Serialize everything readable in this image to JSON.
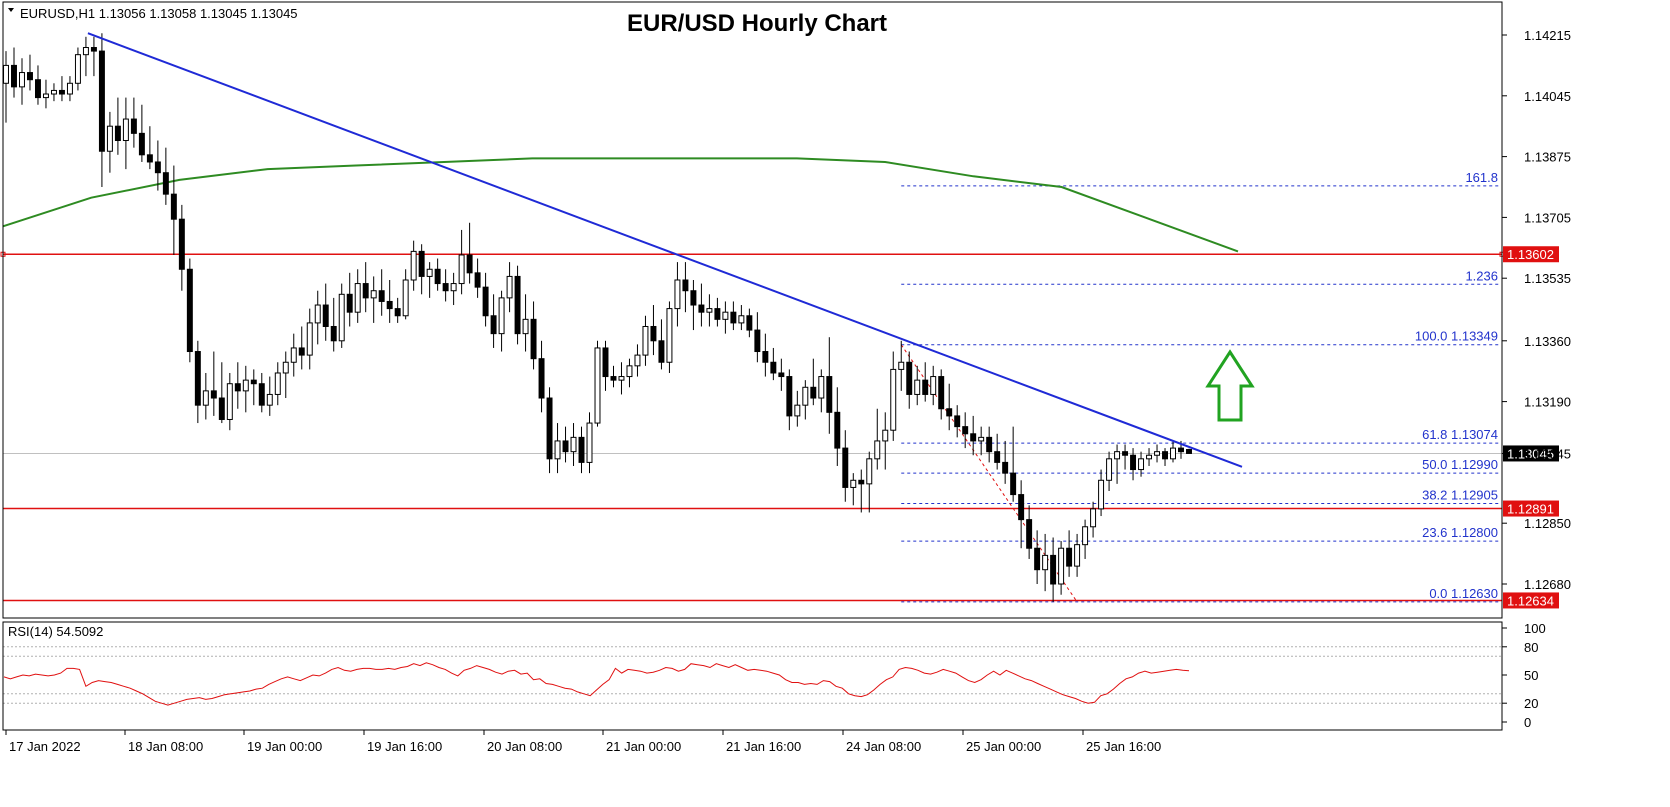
{
  "chart_data": {
    "type": "candlestick",
    "title": "EUR/USD Hourly Chart",
    "symbol_info": "EURUSD,H1  1.13056 1.13058 1.13045 1.13045",
    "price_range": [
      1.1262,
      1.1424
    ],
    "y_ticks": [
      "1.14215",
      "1.14045",
      "1.13875",
      "1.13705",
      "1.13535",
      "1.13360",
      "1.13190",
      "1.13045",
      "1.12850",
      "1.12680"
    ],
    "x_ticks": [
      "17 Jan 2022",
      "18 Jan 08:00",
      "19 Jan 00:00",
      "19 Jan 16:00",
      "20 Jan 08:00",
      "21 Jan 00:00",
      "21 Jan 16:00",
      "24 Jan 08:00",
      "25 Jan 00:00",
      "25 Jan 16:00"
    ],
    "candles": [
      {
        "o": 1.1408,
        "h": 1.1417,
        "l": 1.1397,
        "c": 1.1413
      },
      {
        "o": 1.1413,
        "h": 1.1418,
        "l": 1.1404,
        "c": 1.1407
      },
      {
        "o": 1.1407,
        "h": 1.1415,
        "l": 1.1402,
        "c": 1.1411
      },
      {
        "o": 1.1411,
        "h": 1.1416,
        "l": 1.1406,
        "c": 1.1409
      },
      {
        "o": 1.1409,
        "h": 1.1413,
        "l": 1.1402,
        "c": 1.1404
      },
      {
        "o": 1.1404,
        "h": 1.1409,
        "l": 1.1401,
        "c": 1.1405
      },
      {
        "o": 1.1405,
        "h": 1.1408,
        "l": 1.1403,
        "c": 1.1406
      },
      {
        "o": 1.1406,
        "h": 1.141,
        "l": 1.1403,
        "c": 1.1405
      },
      {
        "o": 1.1405,
        "h": 1.141,
        "l": 1.1403,
        "c": 1.1408
      },
      {
        "o": 1.1408,
        "h": 1.1418,
        "l": 1.1406,
        "c": 1.1416
      },
      {
        "o": 1.1416,
        "h": 1.1421,
        "l": 1.141,
        "c": 1.1418
      },
      {
        "o": 1.1418,
        "h": 1.1421,
        "l": 1.141,
        "c": 1.1417
      },
      {
        "o": 1.1417,
        "h": 1.1422,
        "l": 1.1379,
        "c": 1.1389
      },
      {
        "o": 1.1389,
        "h": 1.14,
        "l": 1.1383,
        "c": 1.1396
      },
      {
        "o": 1.1396,
        "h": 1.1404,
        "l": 1.1388,
        "c": 1.1392
      },
      {
        "o": 1.1392,
        "h": 1.1404,
        "l": 1.1384,
        "c": 1.1398
      },
      {
        "o": 1.1398,
        "h": 1.1404,
        "l": 1.139,
        "c": 1.1394
      },
      {
        "o": 1.1394,
        "h": 1.1402,
        "l": 1.1386,
        "c": 1.1388
      },
      {
        "o": 1.1388,
        "h": 1.1396,
        "l": 1.1384,
        "c": 1.1386
      },
      {
        "o": 1.1386,
        "h": 1.1392,
        "l": 1.1378,
        "c": 1.1383
      },
      {
        "o": 1.1383,
        "h": 1.139,
        "l": 1.1374,
        "c": 1.1377
      },
      {
        "o": 1.1377,
        "h": 1.1385,
        "l": 1.136,
        "c": 1.137
      },
      {
        "o": 1.137,
        "h": 1.1374,
        "l": 1.135,
        "c": 1.1356
      },
      {
        "o": 1.1356,
        "h": 1.1359,
        "l": 1.133,
        "c": 1.1333
      },
      {
        "o": 1.1333,
        "h": 1.1336,
        "l": 1.1313,
        "c": 1.1318
      },
      {
        "o": 1.1318,
        "h": 1.1327,
        "l": 1.1314,
        "c": 1.1322
      },
      {
        "o": 1.1322,
        "h": 1.1333,
        "l": 1.1315,
        "c": 1.132
      },
      {
        "o": 1.132,
        "h": 1.133,
        "l": 1.1313,
        "c": 1.1314
      },
      {
        "o": 1.1314,
        "h": 1.1327,
        "l": 1.1311,
        "c": 1.1324
      },
      {
        "o": 1.1324,
        "h": 1.133,
        "l": 1.1317,
        "c": 1.1322
      },
      {
        "o": 1.1322,
        "h": 1.1329,
        "l": 1.1316,
        "c": 1.1325
      },
      {
        "o": 1.1325,
        "h": 1.1328,
        "l": 1.1318,
        "c": 1.1324
      },
      {
        "o": 1.1324,
        "h": 1.1327,
        "l": 1.1316,
        "c": 1.1318
      },
      {
        "o": 1.1318,
        "h": 1.1326,
        "l": 1.1315,
        "c": 1.1321
      },
      {
        "o": 1.1321,
        "h": 1.133,
        "l": 1.1318,
        "c": 1.1327
      },
      {
        "o": 1.1327,
        "h": 1.1333,
        "l": 1.132,
        "c": 1.133
      },
      {
        "o": 1.133,
        "h": 1.1338,
        "l": 1.1326,
        "c": 1.1334
      },
      {
        "o": 1.1334,
        "h": 1.134,
        "l": 1.1328,
        "c": 1.1332
      },
      {
        "o": 1.1332,
        "h": 1.1345,
        "l": 1.1328,
        "c": 1.1341
      },
      {
        "o": 1.1341,
        "h": 1.135,
        "l": 1.1335,
        "c": 1.1346
      },
      {
        "o": 1.1346,
        "h": 1.1352,
        "l": 1.1336,
        "c": 1.134
      },
      {
        "o": 1.134,
        "h": 1.1348,
        "l": 1.1333,
        "c": 1.1336
      },
      {
        "o": 1.1336,
        "h": 1.1352,
        "l": 1.1334,
        "c": 1.1349
      },
      {
        "o": 1.1349,
        "h": 1.1355,
        "l": 1.134,
        "c": 1.1344
      },
      {
        "o": 1.1344,
        "h": 1.1356,
        "l": 1.1341,
        "c": 1.1352
      },
      {
        "o": 1.1352,
        "h": 1.1358,
        "l": 1.1344,
        "c": 1.1348
      },
      {
        "o": 1.1348,
        "h": 1.1354,
        "l": 1.1341,
        "c": 1.135
      },
      {
        "o": 1.135,
        "h": 1.1356,
        "l": 1.1343,
        "c": 1.1347
      },
      {
        "o": 1.1347,
        "h": 1.1353,
        "l": 1.1341,
        "c": 1.1345
      },
      {
        "o": 1.1345,
        "h": 1.1348,
        "l": 1.1341,
        "c": 1.1343
      },
      {
        "o": 1.1343,
        "h": 1.1356,
        "l": 1.1342,
        "c": 1.1353
      },
      {
        "o": 1.1353,
        "h": 1.1364,
        "l": 1.135,
        "c": 1.1361
      },
      {
        "o": 1.1361,
        "h": 1.1363,
        "l": 1.1349,
        "c": 1.1354
      },
      {
        "o": 1.1354,
        "h": 1.1358,
        "l": 1.1348,
        "c": 1.1356
      },
      {
        "o": 1.1356,
        "h": 1.1359,
        "l": 1.135,
        "c": 1.1352
      },
      {
        "o": 1.1352,
        "h": 1.1356,
        "l": 1.1347,
        "c": 1.135
      },
      {
        "o": 1.135,
        "h": 1.1355,
        "l": 1.1346,
        "c": 1.1352
      },
      {
        "o": 1.1352,
        "h": 1.1367,
        "l": 1.1349,
        "c": 1.136
      },
      {
        "o": 1.136,
        "h": 1.1369,
        "l": 1.1352,
        "c": 1.1355
      },
      {
        "o": 1.1355,
        "h": 1.1359,
        "l": 1.1348,
        "c": 1.1351
      },
      {
        "o": 1.1351,
        "h": 1.1355,
        "l": 1.134,
        "c": 1.1343
      },
      {
        "o": 1.1343,
        "h": 1.1349,
        "l": 1.1334,
        "c": 1.1338
      },
      {
        "o": 1.1338,
        "h": 1.135,
        "l": 1.1333,
        "c": 1.1348
      },
      {
        "o": 1.1348,
        "h": 1.1358,
        "l": 1.1344,
        "c": 1.1354
      },
      {
        "o": 1.1354,
        "h": 1.1357,
        "l": 1.1335,
        "c": 1.1338
      },
      {
        "o": 1.1338,
        "h": 1.1349,
        "l": 1.1333,
        "c": 1.1342
      },
      {
        "o": 1.1342,
        "h": 1.1347,
        "l": 1.1328,
        "c": 1.1331
      },
      {
        "o": 1.1331,
        "h": 1.1336,
        "l": 1.1316,
        "c": 1.132
      },
      {
        "o": 1.132,
        "h": 1.1323,
        "l": 1.1299,
        "c": 1.1303
      },
      {
        "o": 1.1303,
        "h": 1.1313,
        "l": 1.1299,
        "c": 1.1308
      },
      {
        "o": 1.1308,
        "h": 1.1312,
        "l": 1.1302,
        "c": 1.1305
      },
      {
        "o": 1.1305,
        "h": 1.1313,
        "l": 1.1301,
        "c": 1.1309
      },
      {
        "o": 1.1309,
        "h": 1.1312,
        "l": 1.1299,
        "c": 1.1302
      },
      {
        "o": 1.1302,
        "h": 1.1316,
        "l": 1.1299,
        "c": 1.1313
      },
      {
        "o": 1.1313,
        "h": 1.1336,
        "l": 1.1312,
        "c": 1.1334
      },
      {
        "o": 1.1334,
        "h": 1.1336,
        "l": 1.1322,
        "c": 1.1326
      },
      {
        "o": 1.1326,
        "h": 1.1329,
        "l": 1.1323,
        "c": 1.1325
      },
      {
        "o": 1.1325,
        "h": 1.133,
        "l": 1.1321,
        "c": 1.1326
      },
      {
        "o": 1.1326,
        "h": 1.1331,
        "l": 1.1323,
        "c": 1.1329
      },
      {
        "o": 1.1329,
        "h": 1.1335,
        "l": 1.1326,
        "c": 1.1332
      },
      {
        "o": 1.1332,
        "h": 1.1343,
        "l": 1.1329,
        "c": 1.134
      },
      {
        "o": 1.134,
        "h": 1.1346,
        "l": 1.1332,
        "c": 1.1336
      },
      {
        "o": 1.1336,
        "h": 1.1342,
        "l": 1.1328,
        "c": 1.133
      },
      {
        "o": 1.133,
        "h": 1.1347,
        "l": 1.1327,
        "c": 1.1345
      },
      {
        "o": 1.1345,
        "h": 1.1358,
        "l": 1.134,
        "c": 1.1353
      },
      {
        "o": 1.1353,
        "h": 1.1358,
        "l": 1.1344,
        "c": 1.135
      },
      {
        "o": 1.135,
        "h": 1.1353,
        "l": 1.1339,
        "c": 1.1346
      },
      {
        "o": 1.1346,
        "h": 1.1352,
        "l": 1.134,
        "c": 1.1344
      },
      {
        "o": 1.1344,
        "h": 1.1349,
        "l": 1.134,
        "c": 1.1345
      },
      {
        "o": 1.1345,
        "h": 1.1348,
        "l": 1.134,
        "c": 1.1342
      },
      {
        "o": 1.1342,
        "h": 1.1347,
        "l": 1.1338,
        "c": 1.1344
      },
      {
        "o": 1.1344,
        "h": 1.1347,
        "l": 1.1339,
        "c": 1.1341
      },
      {
        "o": 1.1341,
        "h": 1.1346,
        "l": 1.1339,
        "c": 1.1343
      },
      {
        "o": 1.1343,
        "h": 1.1345,
        "l": 1.1337,
        "c": 1.1339
      },
      {
        "o": 1.1339,
        "h": 1.1344,
        "l": 1.133,
        "c": 1.1333
      },
      {
        "o": 1.1333,
        "h": 1.1338,
        "l": 1.1326,
        "c": 1.133
      },
      {
        "o": 1.133,
        "h": 1.1334,
        "l": 1.1325,
        "c": 1.1327
      },
      {
        "o": 1.1327,
        "h": 1.1331,
        "l": 1.1322,
        "c": 1.1326
      },
      {
        "o": 1.1326,
        "h": 1.1328,
        "l": 1.1311,
        "c": 1.1315
      },
      {
        "o": 1.1315,
        "h": 1.1322,
        "l": 1.1312,
        "c": 1.1318
      },
      {
        "o": 1.1318,
        "h": 1.1325,
        "l": 1.1314,
        "c": 1.1323
      },
      {
        "o": 1.1323,
        "h": 1.1331,
        "l": 1.1318,
        "c": 1.132
      },
      {
        "o": 1.132,
        "h": 1.1328,
        "l": 1.1316,
        "c": 1.1326
      },
      {
        "o": 1.1326,
        "h": 1.1337,
        "l": 1.131,
        "c": 1.1316
      },
      {
        "o": 1.1316,
        "h": 1.1323,
        "l": 1.1301,
        "c": 1.1306
      },
      {
        "o": 1.1306,
        "h": 1.1311,
        "l": 1.1291,
        "c": 1.1295
      },
      {
        "o": 1.1295,
        "h": 1.1299,
        "l": 1.129,
        "c": 1.1297
      },
      {
        "o": 1.1297,
        "h": 1.13,
        "l": 1.1288,
        "c": 1.1296
      },
      {
        "o": 1.1296,
        "h": 1.1305,
        "l": 1.1288,
        "c": 1.1303
      },
      {
        "o": 1.1303,
        "h": 1.1317,
        "l": 1.13,
        "c": 1.1308
      },
      {
        "o": 1.1308,
        "h": 1.1316,
        "l": 1.13,
        "c": 1.1311
      },
      {
        "o": 1.1311,
        "h": 1.1333,
        "l": 1.1308,
        "c": 1.1328
      },
      {
        "o": 1.1328,
        "h": 1.1336,
        "l": 1.1322,
        "c": 1.133
      },
      {
        "o": 1.133,
        "h": 1.1333,
        "l": 1.1317,
        "c": 1.1321
      },
      {
        "o": 1.1321,
        "h": 1.1329,
        "l": 1.1318,
        "c": 1.1325
      },
      {
        "o": 1.1325,
        "h": 1.133,
        "l": 1.1319,
        "c": 1.1321
      },
      {
        "o": 1.1321,
        "h": 1.1329,
        "l": 1.1318,
        "c": 1.1326
      },
      {
        "o": 1.1326,
        "h": 1.1328,
        "l": 1.1314,
        "c": 1.1317
      },
      {
        "o": 1.1317,
        "h": 1.1324,
        "l": 1.1311,
        "c": 1.1315
      },
      {
        "o": 1.1315,
        "h": 1.1318,
        "l": 1.1309,
        "c": 1.1312
      },
      {
        "o": 1.1312,
        "h": 1.1316,
        "l": 1.1306,
        "c": 1.131
      },
      {
        "o": 1.131,
        "h": 1.1315,
        "l": 1.1304,
        "c": 1.1308
      },
      {
        "o": 1.1308,
        "h": 1.1312,
        "l": 1.1304,
        "c": 1.1309
      },
      {
        "o": 1.1309,
        "h": 1.1312,
        "l": 1.1302,
        "c": 1.1305
      },
      {
        "o": 1.1305,
        "h": 1.131,
        "l": 1.13,
        "c": 1.1302
      },
      {
        "o": 1.1302,
        "h": 1.1308,
        "l": 1.1296,
        "c": 1.1299
      },
      {
        "o": 1.1299,
        "h": 1.1312,
        "l": 1.1291,
        "c": 1.1293
      },
      {
        "o": 1.1293,
        "h": 1.1297,
        "l": 1.1278,
        "c": 1.1286
      },
      {
        "o": 1.1286,
        "h": 1.129,
        "l": 1.1275,
        "c": 1.1278
      },
      {
        "o": 1.1278,
        "h": 1.1283,
        "l": 1.1268,
        "c": 1.1272
      },
      {
        "o": 1.1272,
        "h": 1.1282,
        "l": 1.1266,
        "c": 1.1276
      },
      {
        "o": 1.1276,
        "h": 1.1281,
        "l": 1.1263,
        "c": 1.1268
      },
      {
        "o": 1.1268,
        "h": 1.128,
        "l": 1.1265,
        "c": 1.1278
      },
      {
        "o": 1.1278,
        "h": 1.1283,
        "l": 1.127,
        "c": 1.1273
      },
      {
        "o": 1.1273,
        "h": 1.1282,
        "l": 1.127,
        "c": 1.1279
      },
      {
        "o": 1.1279,
        "h": 1.1286,
        "l": 1.1275,
        "c": 1.1284
      },
      {
        "o": 1.1284,
        "h": 1.1291,
        "l": 1.1281,
        "c": 1.1289
      },
      {
        "o": 1.1289,
        "h": 1.13,
        "l": 1.1287,
        "c": 1.1297
      },
      {
        "o": 1.1297,
        "h": 1.1305,
        "l": 1.1294,
        "c": 1.1303
      },
      {
        "o": 1.1303,
        "h": 1.1307,
        "l": 1.1296,
        "c": 1.1305
      },
      {
        "o": 1.1305,
        "h": 1.1307,
        "l": 1.13,
        "c": 1.1304
      },
      {
        "o": 1.1304,
        "h": 1.1306,
        "l": 1.1297,
        "c": 1.13
      },
      {
        "o": 1.13,
        "h": 1.1305,
        "l": 1.1298,
        "c": 1.1303
      },
      {
        "o": 1.1303,
        "h": 1.1306,
        "l": 1.1301,
        "c": 1.1304
      },
      {
        "o": 1.1304,
        "h": 1.1307,
        "l": 1.1302,
        "c": 1.1305
      },
      {
        "o": 1.1305,
        "h": 1.1306,
        "l": 1.1301,
        "c": 1.1303
      },
      {
        "o": 1.1303,
        "h": 1.1308,
        "l": 1.1302,
        "c": 1.1306
      },
      {
        "o": 1.1306,
        "h": 1.1308,
        "l": 1.1303,
        "c": 1.1305
      },
      {
        "o": 1.13056,
        "h": 1.13058,
        "l": 1.13045,
        "c": 1.13045
      }
    ],
    "ma_line": {
      "color": "#2e8b22",
      "values": [
        1.1368,
        1.1376,
        1.1381,
        1.1384,
        1.1385,
        1.1386,
        1.1387,
        1.1387,
        1.1387,
        1.1387,
        1.1386,
        1.1382,
        1.1379,
        1.137,
        1.1361
      ]
    },
    "trendline": {
      "color": "#1f2ad6",
      "from": {
        "candle": 10,
        "price": 1.1422
      },
      "to": {
        "candle": 155,
        "price": 1.1303
      }
    },
    "horizontal_levels": [
      {
        "price": 1.13602,
        "label": "1.13602",
        "color": "#e01010"
      },
      {
        "price": 1.12891,
        "label": "1.12891",
        "color": "#e01010"
      },
      {
        "price": 1.12634,
        "label": "1.12634",
        "color": "#e01010"
      }
    ],
    "current_price": {
      "price": 1.13045,
      "label": "1.13045"
    },
    "fibonacci": {
      "color": "#2233cc",
      "start_candle": 112,
      "high": 1.13349,
      "low": 1.1263,
      "levels": [
        {
          "price": 1.13793,
          "label": "161.8"
        },
        {
          "price": 1.13518,
          "label": "1.236"
        },
        {
          "price": 1.13349,
          "label": "100.0 1.13349"
        },
        {
          "price": 1.13074,
          "label": "61.8 1.13074"
        },
        {
          "price": 1.1299,
          "label": "50.0 1.12990"
        },
        {
          "price": 1.12905,
          "label": "38.2 1.12905"
        },
        {
          "price": 1.128,
          "label": "23.6 1.12800"
        },
        {
          "price": 1.1263,
          "label": "0.0 1.12630"
        }
      ]
    },
    "arrow": {
      "color": "#21a321",
      "direction": "up"
    },
    "rsi": {
      "label": "RSI(14) 54.5092",
      "range": [
        0,
        100
      ],
      "ticks": [
        "100",
        "80",
        "50",
        "20",
        "0"
      ],
      "levels": [
        80,
        70,
        30,
        20
      ],
      "color": "#e01010",
      "values": [
        48,
        46,
        48,
        50,
        49,
        51,
        50,
        49,
        50,
        52,
        57,
        57,
        56,
        38,
        42,
        44,
        43,
        42,
        40,
        38,
        36,
        33,
        30,
        26,
        22,
        20,
        18,
        20,
        22,
        24,
        25,
        26,
        24,
        25,
        27,
        29,
        30,
        31,
        32,
        33,
        35,
        36,
        40,
        43,
        46,
        48,
        46,
        44,
        47,
        50,
        49,
        52,
        56,
        58,
        55,
        54,
        56,
        57,
        57,
        56,
        56,
        57,
        56,
        58,
        59,
        62,
        60,
        63,
        61,
        58,
        56,
        52,
        49,
        55,
        57,
        60,
        58,
        56,
        53,
        51,
        54,
        55,
        51,
        52,
        45,
        46,
        41,
        40,
        38,
        36,
        35,
        32,
        30,
        28,
        34,
        40,
        45,
        57,
        52,
        56,
        55,
        54,
        52,
        53,
        55,
        58,
        57,
        54,
        56,
        62,
        61,
        60,
        58,
        62,
        60,
        58,
        61,
        58,
        55,
        56,
        55,
        54,
        52,
        50,
        45,
        42,
        42,
        40,
        41,
        40,
        44,
        43,
        38,
        36,
        30,
        28,
        27,
        29,
        34,
        40,
        45,
        48,
        56,
        58,
        57,
        55,
        52,
        51,
        53,
        56,
        54,
        52,
        48,
        44,
        42,
        45,
        50,
        54,
        50,
        55,
        52,
        49,
        46,
        44,
        41,
        38,
        35,
        32,
        29,
        27,
        25,
        22,
        20,
        21,
        28,
        30,
        35,
        41,
        46,
        48,
        52,
        54,
        52,
        53,
        54,
        55,
        56,
        55,
        54.5
      ]
    }
  }
}
